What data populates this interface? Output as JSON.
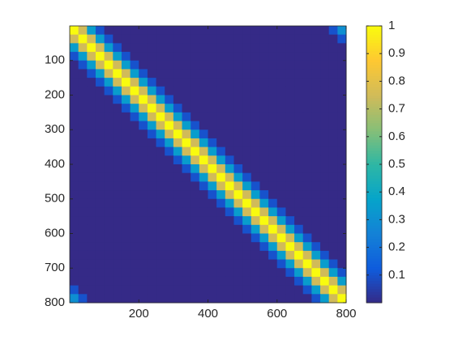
{
  "chart_data": {
    "type": "heatmap",
    "colormap": "parula",
    "xlim": [
      0,
      800
    ],
    "ylim": [
      0,
      800
    ],
    "y_reversed": true,
    "xticks": [
      200,
      400,
      600,
      800
    ],
    "yticks": [
      100,
      200,
      300,
      400,
      500,
      600,
      700,
      800
    ],
    "clim": [
      0,
      1
    ],
    "cticks": [
      0.1,
      0.2,
      0.3,
      0.4,
      0.5,
      0.6,
      0.7,
      0.8,
      0.9,
      1
    ],
    "z": [
      [
        1,
        0.75,
        0.35,
        0.1,
        0,
        0,
        0,
        0,
        0,
        0,
        0,
        0,
        0,
        0,
        0,
        0,
        0,
        0,
        0,
        0,
        0,
        0,
        0,
        0,
        0,
        0,
        0,
        0,
        0,
        0,
        0.1,
        0.3
      ],
      [
        0.75,
        1,
        0.75,
        0.35,
        0.1,
        0,
        0,
        0,
        0,
        0,
        0,
        0,
        0,
        0,
        0,
        0,
        0,
        0,
        0,
        0,
        0,
        0,
        0,
        0,
        0,
        0,
        0,
        0,
        0,
        0,
        0,
        0.1
      ],
      [
        0.35,
        0.75,
        1,
        0.75,
        0.35,
        0.1,
        0,
        0,
        0,
        0,
        0,
        0,
        0,
        0,
        0,
        0,
        0,
        0,
        0,
        0,
        0,
        0,
        0,
        0,
        0,
        0,
        0,
        0,
        0,
        0,
        0,
        0
      ],
      [
        0.1,
        0.35,
        0.75,
        1,
        0.75,
        0.35,
        0.1,
        0,
        0,
        0,
        0,
        0,
        0,
        0,
        0,
        0,
        0,
        0,
        0,
        0,
        0,
        0,
        0,
        0,
        0,
        0,
        0,
        0,
        0,
        0,
        0,
        0
      ],
      [
        0,
        0.1,
        0.35,
        0.75,
        1,
        0.75,
        0.35,
        0.1,
        0,
        0,
        0,
        0,
        0,
        0,
        0,
        0,
        0,
        0,
        0,
        0,
        0,
        0,
        0,
        0,
        0,
        0,
        0,
        0,
        0,
        0,
        0,
        0
      ],
      [
        0,
        0,
        0.1,
        0.35,
        0.75,
        1,
        0.75,
        0.35,
        0.1,
        0,
        0,
        0,
        0,
        0,
        0,
        0,
        0,
        0,
        0,
        0,
        0,
        0,
        0,
        0,
        0,
        0,
        0,
        0,
        0,
        0,
        0,
        0
      ],
      [
        0,
        0,
        0,
        0.1,
        0.35,
        0.75,
        1,
        0.75,
        0.35,
        0.1,
        0,
        0,
        0,
        0,
        0,
        0,
        0,
        0,
        0,
        0,
        0,
        0,
        0,
        0,
        0,
        0,
        0,
        0,
        0,
        0,
        0,
        0
      ],
      [
        0,
        0,
        0,
        0,
        0.1,
        0.35,
        0.75,
        1,
        0.75,
        0.35,
        0.1,
        0,
        0,
        0,
        0,
        0,
        0,
        0,
        0,
        0,
        0,
        0,
        0,
        0,
        0,
        0,
        0,
        0,
        0,
        0,
        0,
        0
      ],
      [
        0,
        0,
        0,
        0,
        0,
        0.1,
        0.35,
        0.75,
        1,
        0.75,
        0.35,
        0.1,
        0,
        0,
        0,
        0,
        0,
        0,
        0,
        0,
        0,
        0,
        0,
        0,
        0,
        0,
        0,
        0,
        0,
        0,
        0,
        0
      ],
      [
        0,
        0,
        0,
        0,
        0,
        0,
        0.1,
        0.35,
        0.75,
        1,
        0.75,
        0.35,
        0.1,
        0,
        0,
        0,
        0,
        0,
        0,
        0,
        0,
        0,
        0,
        0,
        0,
        0,
        0,
        0,
        0,
        0,
        0,
        0
      ],
      [
        0,
        0,
        0,
        0,
        0,
        0,
        0,
        0.1,
        0.35,
        0.75,
        1,
        0.75,
        0.35,
        0.1,
        0,
        0,
        0,
        0,
        0,
        0,
        0,
        0,
        0,
        0,
        0,
        0,
        0,
        0,
        0,
        0,
        0,
        0
      ],
      [
        0,
        0,
        0,
        0,
        0,
        0,
        0,
        0,
        0.1,
        0.35,
        0.75,
        1,
        0.75,
        0.35,
        0.1,
        0,
        0,
        0,
        0,
        0,
        0,
        0,
        0,
        0,
        0,
        0,
        0,
        0,
        0,
        0,
        0,
        0
      ],
      [
        0,
        0,
        0,
        0,
        0,
        0,
        0,
        0,
        0,
        0.1,
        0.35,
        0.75,
        1,
        0.75,
        0.35,
        0.1,
        0,
        0,
        0,
        0,
        0,
        0,
        0,
        0,
        0,
        0,
        0,
        0,
        0,
        0,
        0,
        0
      ],
      [
        0,
        0,
        0,
        0,
        0,
        0,
        0,
        0,
        0,
        0,
        0.1,
        0.35,
        0.75,
        1,
        0.75,
        0.35,
        0.1,
        0,
        0,
        0,
        0,
        0,
        0,
        0,
        0,
        0,
        0,
        0,
        0,
        0,
        0,
        0
      ],
      [
        0,
        0,
        0,
        0,
        0,
        0,
        0,
        0,
        0,
        0,
        0,
        0.1,
        0.35,
        0.75,
        1,
        0.75,
        0.35,
        0.1,
        0,
        0,
        0,
        0,
        0,
        0,
        0,
        0,
        0,
        0,
        0,
        0,
        0,
        0
      ],
      [
        0,
        0,
        0,
        0,
        0,
        0,
        0,
        0,
        0,
        0,
        0,
        0,
        0.1,
        0.35,
        0.75,
        1,
        0.75,
        0.35,
        0.1,
        0,
        0,
        0,
        0,
        0,
        0,
        0,
        0,
        0,
        0,
        0,
        0,
        0
      ],
      [
        0,
        0,
        0,
        0,
        0,
        0,
        0,
        0,
        0,
        0,
        0,
        0,
        0,
        0.1,
        0.35,
        0.75,
        1,
        0.75,
        0.35,
        0.1,
        0,
        0,
        0,
        0,
        0,
        0,
        0,
        0,
        0,
        0,
        0,
        0
      ],
      [
        0,
        0,
        0,
        0,
        0,
        0,
        0,
        0,
        0,
        0,
        0,
        0,
        0,
        0,
        0.1,
        0.35,
        0.75,
        1,
        0.75,
        0.35,
        0.1,
        0,
        0,
        0,
        0,
        0,
        0,
        0,
        0,
        0,
        0,
        0
      ],
      [
        0,
        0,
        0,
        0,
        0,
        0,
        0,
        0,
        0,
        0,
        0,
        0,
        0,
        0,
        0,
        0.1,
        0.35,
        0.75,
        1,
        0.75,
        0.35,
        0.1,
        0,
        0,
        0,
        0,
        0,
        0,
        0,
        0,
        0,
        0
      ],
      [
        0,
        0,
        0,
        0,
        0,
        0,
        0,
        0,
        0,
        0,
        0,
        0,
        0,
        0,
        0,
        0,
        0.1,
        0.35,
        0.75,
        1,
        0.75,
        0.35,
        0.1,
        0,
        0,
        0,
        0,
        0,
        0,
        0,
        0,
        0
      ],
      [
        0,
        0,
        0,
        0,
        0,
        0,
        0,
        0,
        0,
        0,
        0,
        0,
        0,
        0,
        0,
        0,
        0,
        0.1,
        0.35,
        0.75,
        1,
        0.75,
        0.35,
        0.1,
        0,
        0,
        0,
        0,
        0,
        0,
        0,
        0
      ],
      [
        0,
        0,
        0,
        0,
        0,
        0,
        0,
        0,
        0,
        0,
        0,
        0,
        0,
        0,
        0,
        0,
        0,
        0,
        0.1,
        0.35,
        0.75,
        1,
        0.75,
        0.35,
        0.1,
        0,
        0,
        0,
        0,
        0,
        0,
        0
      ],
      [
        0,
        0,
        0,
        0,
        0,
        0,
        0,
        0,
        0,
        0,
        0,
        0,
        0,
        0,
        0,
        0,
        0,
        0,
        0,
        0.1,
        0.35,
        0.75,
        1,
        0.75,
        0.35,
        0.1,
        0,
        0,
        0,
        0,
        0,
        0
      ],
      [
        0,
        0,
        0,
        0,
        0,
        0,
        0,
        0,
        0,
        0,
        0,
        0,
        0,
        0,
        0,
        0,
        0,
        0,
        0,
        0,
        0.1,
        0.35,
        0.75,
        1,
        0.75,
        0.35,
        0.1,
        0,
        0,
        0,
        0,
        0
      ],
      [
        0,
        0,
        0,
        0,
        0,
        0,
        0,
        0,
        0,
        0,
        0,
        0,
        0,
        0,
        0,
        0,
        0,
        0,
        0,
        0,
        0,
        0.1,
        0.35,
        0.75,
        1,
        0.75,
        0.35,
        0.1,
        0,
        0,
        0,
        0
      ],
      [
        0,
        0,
        0,
        0,
        0,
        0,
        0,
        0,
        0,
        0,
        0,
        0,
        0,
        0,
        0,
        0,
        0,
        0,
        0,
        0,
        0,
        0,
        0.1,
        0.35,
        0.75,
        1,
        0.75,
        0.35,
        0.1,
        0,
        0,
        0
      ],
      [
        0,
        0,
        0,
        0,
        0,
        0,
        0,
        0,
        0,
        0,
        0,
        0,
        0,
        0,
        0,
        0,
        0,
        0,
        0,
        0,
        0,
        0,
        0,
        0.1,
        0.35,
        0.75,
        1,
        0.75,
        0.35,
        0.1,
        0,
        0
      ],
      [
        0,
        0,
        0,
        0,
        0,
        0,
        0,
        0,
        0,
        0,
        0,
        0,
        0,
        0,
        0,
        0,
        0,
        0,
        0,
        0,
        0,
        0,
        0,
        0,
        0.1,
        0.35,
        0.75,
        1,
        0.75,
        0.35,
        0.1,
        0
      ],
      [
        0,
        0,
        0,
        0,
        0,
        0,
        0,
        0,
        0,
        0,
        0,
        0,
        0,
        0,
        0,
        0,
        0,
        0,
        0,
        0,
        0,
        0,
        0,
        0,
        0,
        0.1,
        0.35,
        0.75,
        1,
        0.75,
        0.35,
        0.1
      ],
      [
        0,
        0,
        0,
        0,
        0,
        0,
        0,
        0,
        0,
        0,
        0,
        0,
        0,
        0,
        0,
        0,
        0,
        0,
        0,
        0,
        0,
        0,
        0,
        0,
        0,
        0,
        0.1,
        0.35,
        0.75,
        1,
        0.75,
        0.35
      ],
      [
        0.1,
        0,
        0,
        0,
        0,
        0,
        0,
        0,
        0,
        0,
        0,
        0,
        0,
        0,
        0,
        0,
        0,
        0,
        0,
        0,
        0,
        0,
        0,
        0,
        0,
        0,
        0,
        0.1,
        0.35,
        0.75,
        1,
        0.75
      ],
      [
        0.3,
        0.1,
        0,
        0,
        0,
        0,
        0,
        0,
        0,
        0,
        0,
        0,
        0,
        0,
        0,
        0,
        0,
        0,
        0,
        0,
        0,
        0,
        0,
        0,
        0,
        0,
        0,
        0,
        0.1,
        0.35,
        0.75,
        1
      ]
    ]
  }
}
